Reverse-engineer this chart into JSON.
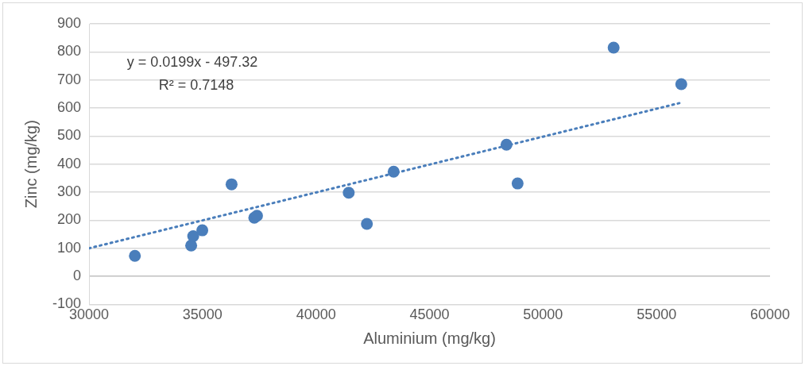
{
  "chart_data": {
    "type": "scatter",
    "xlabel": "Aluminium (mg/kg)",
    "ylabel": "Zinc (mg/kg)",
    "x": [
      32020,
      34500,
      34590,
      34990,
      36280,
      37280,
      37400,
      41440,
      42240,
      43420,
      48390,
      48880,
      53110,
      56090
    ],
    "series": [
      {
        "color": "#4a7ebb",
        "marker": "circle",
        "values": [
          73,
          110,
          143,
          164,
          328,
          209,
          216,
          298,
          187,
          373,
          469,
          331,
          815,
          685
        ]
      },
      {
        "type": "line",
        "color": "#4a7ebb",
        "marker": "none",
        "line_style": "dotted",
        "x": [
          30000,
          56090
        ],
        "values": [
          100,
          619
        ]
      }
    ],
    "xlim": [
      30000,
      60000
    ],
    "xticks": [
      30000,
      35000,
      40000,
      45000,
      50000,
      55000,
      60000
    ],
    "ylim": [
      -100,
      900
    ],
    "yticks": [
      -100,
      0,
      100,
      200,
      300,
      400,
      500,
      600,
      700,
      800,
      900
    ],
    "grid": "y",
    "legend": false,
    "annotations": [
      "y = 0.0199x - 497.32",
      "R² = 0.7148"
    ]
  }
}
